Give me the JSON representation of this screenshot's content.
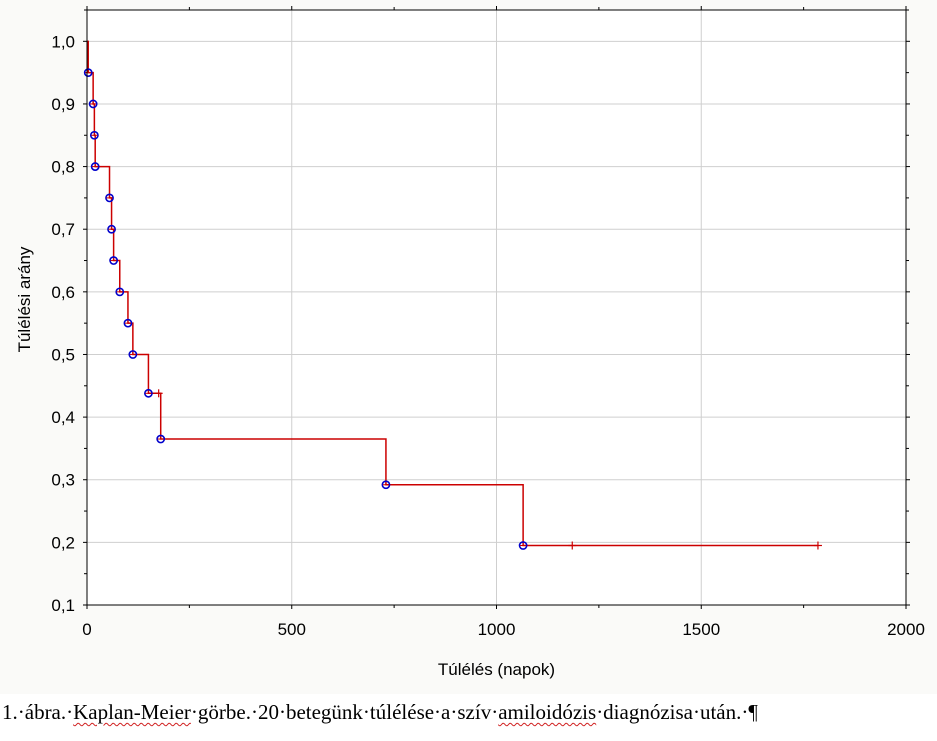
{
  "chart_data": {
    "type": "line",
    "title": "",
    "xlabel": "Túlélés (napok)",
    "ylabel": "Túlélési arány",
    "xlim": [
      0,
      2000
    ],
    "ylim": [
      0.1,
      1.05
    ],
    "x_ticks": [
      0,
      500,
      1000,
      1500,
      2000
    ],
    "x_tick_labels": [
      "0",
      "500",
      "1000",
      "1500",
      "2000"
    ],
    "y_ticks": [
      0.1,
      0.2,
      0.3,
      0.4,
      0.5,
      0.6,
      0.7,
      0.8,
      0.9,
      1.0
    ],
    "y_tick_labels": [
      "0,1",
      "0,2",
      "0,3",
      "0,4",
      "0,5",
      "0,6",
      "0,7",
      "0,8",
      "0,9",
      "1,0"
    ],
    "grid": true,
    "line_color": "#cc0000",
    "event_marker_color": "#0000cc",
    "series": [
      {
        "step_x": [
          0,
          3,
          3,
          15,
          15,
          18,
          18,
          20,
          20,
          55,
          55,
          60,
          60,
          65,
          65,
          80,
          80,
          100,
          100,
          112,
          112,
          150,
          150,
          180,
          180,
          730,
          730,
          1065,
          1065,
          1785
        ],
        "step_y": [
          1.0,
          1.0,
          0.95,
          0.95,
          0.9,
          0.9,
          0.85,
          0.85,
          0.8,
          0.8,
          0.75,
          0.75,
          0.7,
          0.7,
          0.65,
          0.65,
          0.6,
          0.6,
          0.55,
          0.55,
          0.5,
          0.5,
          0.438,
          0.438,
          0.365,
          0.365,
          0.292,
          0.292,
          0.195,
          0.195
        ],
        "events": [
          {
            "x": 3,
            "y": 0.95
          },
          {
            "x": 15,
            "y": 0.9
          },
          {
            "x": 18,
            "y": 0.85
          },
          {
            "x": 20,
            "y": 0.8
          },
          {
            "x": 55,
            "y": 0.75
          },
          {
            "x": 60,
            "y": 0.7
          },
          {
            "x": 65,
            "y": 0.65
          },
          {
            "x": 80,
            "y": 0.6
          },
          {
            "x": 100,
            "y": 0.55
          },
          {
            "x": 112,
            "y": 0.5
          },
          {
            "x": 150,
            "y": 0.438
          },
          {
            "x": 180,
            "y": 0.365
          },
          {
            "x": 730,
            "y": 0.292
          },
          {
            "x": 1065,
            "y": 0.195
          }
        ],
        "censored": [
          {
            "x": 175,
            "y": 0.438
          },
          {
            "x": 1185,
            "y": 0.195
          },
          {
            "x": 1785,
            "y": 0.195
          }
        ]
      }
    ]
  },
  "caption": {
    "part1": "1.·ábra.·",
    "part2": "Kaplan-Meier",
    "part3": "·görbe.·20·betegünk·túlélése·a·szív·",
    "part4": "amiloidózis",
    "part5": "·diagnózisa·után.·¶"
  }
}
